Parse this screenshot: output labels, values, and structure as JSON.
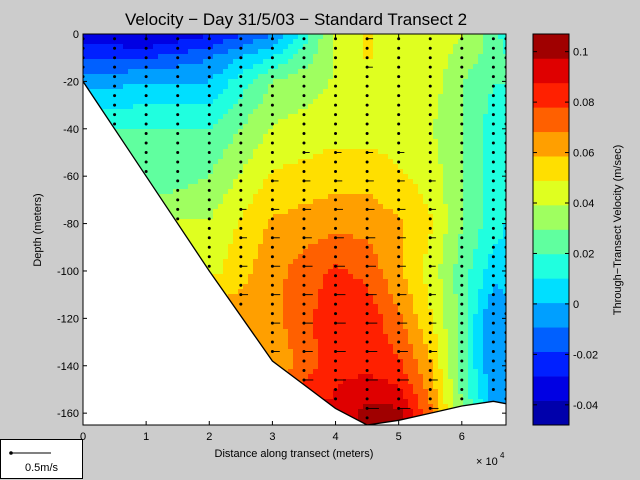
{
  "chart_data": {
    "type": "heatmap",
    "title": "Velocity − Day 31/5/03 − Standard Transect 2",
    "xlabel": "Distance along transect (meters)",
    "ylabel": "Depth (meters)",
    "x_multiplier": "× 10",
    "x_multiplier_exp": "4",
    "xlim": [
      0,
      67000
    ],
    "ylim": [
      -165,
      0
    ],
    "xticks": [
      0,
      1,
      2,
      3,
      4,
      5,
      6
    ],
    "yticks": [
      0,
      -20,
      -40,
      -60,
      -80,
      -100,
      -120,
      -140,
      -160
    ],
    "colorbar": {
      "label": "Through−Transect Velocity (m/sec)",
      "range": [
        -0.048,
        0.107
      ],
      "ticks": [
        0.1,
        0.08,
        0.06,
        0.04,
        0.02,
        0,
        -0.02,
        -0.04
      ],
      "levels": 16
    },
    "bottom_profile": {
      "x": [
        0,
        10000,
        20000,
        30000,
        40000,
        45000,
        50000,
        55000,
        60000,
        65000,
        67000
      ],
      "depth": [
        -20,
        -60,
        -100,
        -138,
        -158,
        -165,
        -163,
        -160,
        -157,
        -155,
        -156
      ]
    },
    "velocity_field": {
      "x": [
        0,
        10000,
        20000,
        30000,
        40000,
        45000,
        50000,
        55000,
        60000,
        65000,
        67000
      ],
      "depth": [
        0,
        -10,
        -20,
        -40,
        -60,
        -80,
        -100,
        -120,
        -140,
        -160
      ],
      "values": [
        [
          -0.035,
          -0.04,
          -0.03,
          -0.01,
          0.04,
          0.05,
          0.045,
          0.045,
          0.04,
          0.025,
          0.015
        ],
        [
          -0.02,
          -0.02,
          -0.01,
          0.01,
          0.04,
          0.05,
          0.045,
          0.045,
          0.035,
          0.025,
          0.02
        ],
        [
          -0.005,
          0.0,
          0.0,
          0.03,
          0.04,
          0.045,
          0.045,
          0.045,
          0.03,
          0.02,
          0.02
        ],
        [
          null,
          0.02,
          0.02,
          0.04,
          0.045,
          0.045,
          0.045,
          0.04,
          0.03,
          0.015,
          0.015
        ],
        [
          null,
          0.02,
          0.03,
          0.05,
          0.055,
          0.055,
          0.05,
          0.045,
          0.03,
          0.015,
          0.015
        ],
        [
          null,
          null,
          0.04,
          0.06,
          0.065,
          0.065,
          0.06,
          0.05,
          0.03,
          0.015,
          0.01
        ],
        [
          null,
          null,
          0.045,
          0.065,
          0.08,
          0.075,
          0.06,
          0.045,
          0.025,
          0.005,
          0.005
        ],
        [
          null,
          null,
          null,
          0.065,
          0.085,
          0.085,
          0.07,
          0.05,
          0.025,
          -0.01,
          -0.005
        ],
        [
          null,
          null,
          null,
          0.06,
          0.085,
          0.085,
          0.08,
          0.06,
          0.025,
          -0.01,
          -0.005
        ],
        [
          null,
          null,
          null,
          null,
          0.09,
          0.1,
          0.1,
          0.07,
          0.03,
          0.0,
          0.0
        ]
      ]
    },
    "station_x": [
      0,
      5000,
      10000,
      15000,
      20000,
      25000,
      30000,
      35000,
      40000,
      45000,
      50000,
      55000,
      60000,
      65000,
      67000
    ],
    "scale_arrow_label": "0.5m/s"
  }
}
